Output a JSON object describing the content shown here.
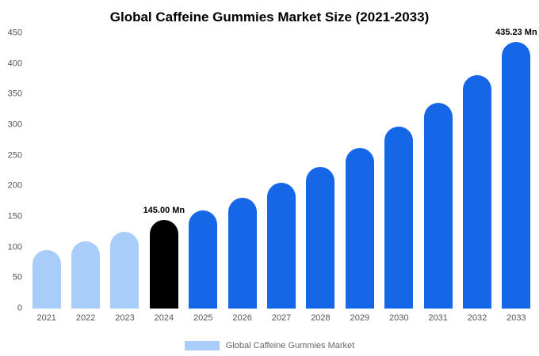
{
  "chart_data": {
    "type": "bar",
    "title": "Global Caffeine Gummies Market Size (2021-2033)",
    "xlabel": "",
    "ylabel": "",
    "ylim": [
      0,
      450
    ],
    "ytick_step": 50,
    "grid": false,
    "legend_position": "bottom",
    "colors": {
      "historical": "#a7cdf8",
      "highlight": "#000000",
      "forecast": "#1667e8"
    },
    "legend": [
      {
        "label": "Global Caffeine Gummies Market",
        "color": "#a7cdf8"
      }
    ],
    "points": [
      {
        "x": "2021",
        "y": 96,
        "series": "historical"
      },
      {
        "x": "2022",
        "y": 110,
        "series": "historical"
      },
      {
        "x": "2023",
        "y": 125,
        "series": "historical"
      },
      {
        "x": "2024",
        "y": 145,
        "series": "highlight",
        "label": "145.00 Mn"
      },
      {
        "x": "2025",
        "y": 160,
        "series": "forecast"
      },
      {
        "x": "2026",
        "y": 181,
        "series": "forecast"
      },
      {
        "x": "2027",
        "y": 205,
        "series": "forecast"
      },
      {
        "x": "2028",
        "y": 231,
        "series": "forecast"
      },
      {
        "x": "2029",
        "y": 262,
        "series": "forecast"
      },
      {
        "x": "2030",
        "y": 297,
        "series": "forecast"
      },
      {
        "x": "2031",
        "y": 336,
        "series": "forecast"
      },
      {
        "x": "2032",
        "y": 381,
        "series": "forecast"
      },
      {
        "x": "2033",
        "y": 435.23,
        "series": "forecast",
        "label": "435.23 Mn"
      }
    ]
  }
}
